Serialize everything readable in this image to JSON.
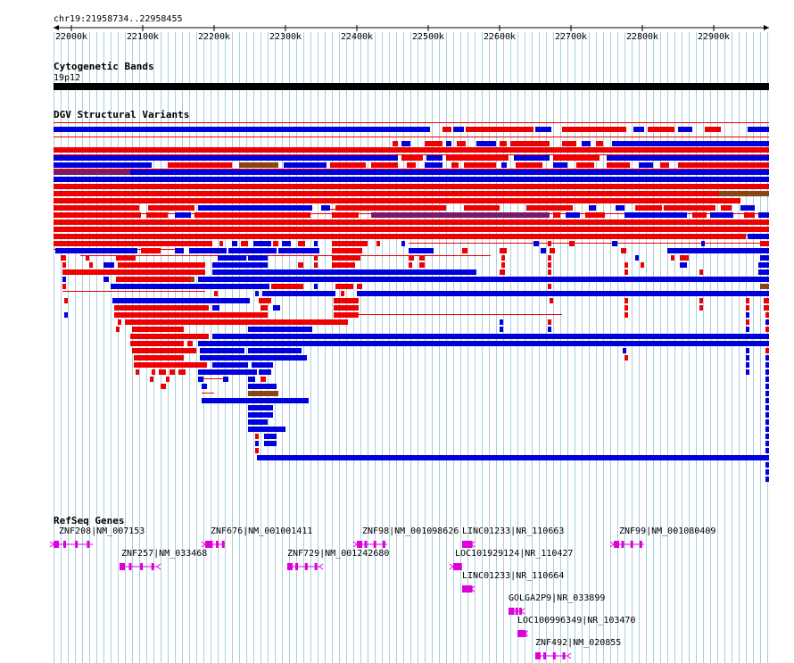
{
  "region": "chr19:21958734..22958455",
  "ruler": {
    "ticks": [
      {
        "label": "22000k",
        "value": 22000000
      },
      {
        "label": "22100k",
        "value": 22100000
      },
      {
        "label": "22200k",
        "value": 22200000
      },
      {
        "label": "22300k",
        "value": 22300000
      },
      {
        "label": "22400k",
        "value": 22400000
      },
      {
        "label": "22500k",
        "value": 22500000
      },
      {
        "label": "22600k",
        "value": 22600000
      },
      {
        "label": "22700k",
        "value": 22700000
      },
      {
        "label": "22800k",
        "value": 22800000
      },
      {
        "label": "22900k",
        "value": 22900000
      }
    ]
  },
  "tracks": {
    "cytoband": {
      "title": "Cytogenetic Bands",
      "band": "19p12"
    },
    "dgv": {
      "title": "DGV Structural Variants"
    },
    "refseq": {
      "title": "RefSeq Genes"
    }
  },
  "colors": {
    "loss": "#0000dd",
    "gain": "#ee0000",
    "gain_loss": "#7a1a6a",
    "inversion": "#8b4513",
    "gene": "#dd00dd",
    "grid": "#a8cfe0",
    "band": "#000000"
  },
  "genes": [
    {
      "label": "ZNF208|NM_007153",
      "strand": "-"
    },
    {
      "label": "ZNF257|NM_033468",
      "strand": "+"
    },
    {
      "label": "ZNF676|NM_001001411",
      "strand": "-"
    },
    {
      "label": "ZNF729|NM_001242680",
      "strand": "+"
    },
    {
      "label": "ZNF98|NM_001098626",
      "strand": "-"
    },
    {
      "label": "LINC01233|NR_110663",
      "strand": "+"
    },
    {
      "label": "LOC101929124|NR_110427",
      "strand": "-"
    },
    {
      "label": "LINC01233|NR_110664",
      "strand": "+"
    },
    {
      "label": "GOLGA2P9|NR_033899",
      "strand": "+"
    },
    {
      "label": "LOC100996349|NR_103470",
      "strand": "+"
    },
    {
      "label": "ZNF492|NM_020855",
      "strand": "+"
    },
    {
      "label": "ZNF99|NM_001080409",
      "strand": "-"
    }
  ]
}
